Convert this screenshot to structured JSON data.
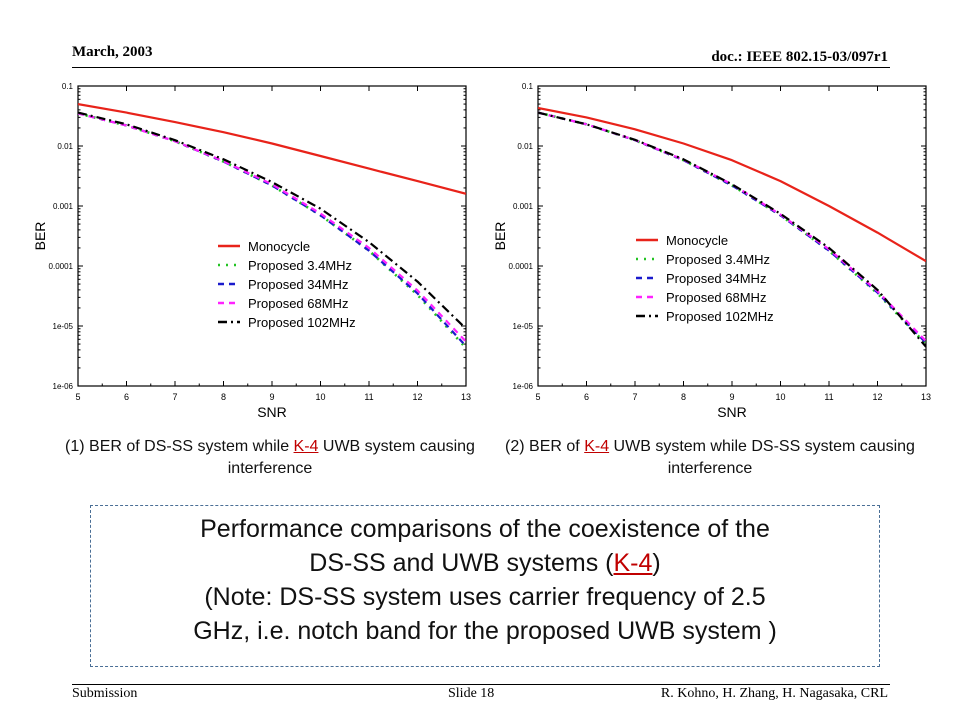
{
  "header": {
    "date": "March, 2003",
    "doc_id": "doc.: IEEE 802.15-03/097r1"
  },
  "footer": {
    "left": "Submission",
    "center": "Slide 18",
    "right": "R. Kohno, H. Zhang, H. Nagasaka, CRL"
  },
  "colors": {
    "monocycle": "#e8231a",
    "p34_dotted": "#22c322",
    "p34": "#1a1acc",
    "p68": "#ff22ff",
    "p102": "#000000",
    "caption_link": "#c00000",
    "box_border": "#4a6f96"
  },
  "captions": [
    {
      "pre": "(1) BER of DS-SS system while ",
      "link": "K-4",
      "post": " UWB system causing interference"
    },
    {
      "pre": "(2) BER of ",
      "link": "K-4",
      "post": " UWB system while DS-SS system causing interference"
    }
  ],
  "summary": {
    "line1": "Performance comparisons of the coexistence of the",
    "line2_pre": "DS-SS and UWB systems (",
    "line2_link": "K-4",
    "line2_post": ")",
    "line3": "(Note: DS-SS system uses carrier frequency of 2.5",
    "line4": "GHz, i.e. notch band for the proposed UWB system )"
  },
  "chart_data": [
    {
      "type": "line",
      "title": "",
      "xlabel": "SNR",
      "ylabel": "BER",
      "xlim": [
        5,
        13
      ],
      "ylim": [
        1e-06,
        0.1
      ],
      "log_y": true,
      "grid": false,
      "legend_position": "center-left",
      "x_ticks": [
        "5",
        "6",
        "7",
        "8",
        "9",
        "10",
        "11",
        "12",
        "13"
      ],
      "y_ticks": [
        "0.1",
        "0.01",
        "0.001",
        "0.0001",
        "1e-05",
        "1e-06"
      ],
      "x": [
        5,
        6,
        7,
        8,
        9,
        10,
        11,
        12,
        13
      ],
      "series": [
        {
          "name": "Monocycle",
          "color": "#e8231a",
          "dash": "solid",
          "values": [
            0.05,
            0.036,
            0.025,
            0.017,
            0.011,
            0.0068,
            0.0042,
            0.0026,
            0.0016
          ]
        },
        {
          "name": "Proposed 3.4MHz",
          "color": "#22c322",
          "dash": "dotted",
          "values": [
            0.035,
            0.022,
            0.012,
            0.0055,
            0.0022,
            0.0007,
            0.00018,
            3.3e-05,
            4.3e-06
          ]
        },
        {
          "name": "Proposed 34MHz",
          "color": "#1a1acc",
          "dash": "dashed",
          "values": [
            0.035,
            0.022,
            0.012,
            0.0055,
            0.0022,
            0.0007,
            0.00018,
            3.5e-05,
            4.6e-06
          ]
        },
        {
          "name": "Proposed 68MHz",
          "color": "#ff22ff",
          "dash": "dashed",
          "values": [
            0.035,
            0.022,
            0.012,
            0.0056,
            0.0023,
            0.00075,
            0.0002,
            3.9e-05,
            5.5e-06
          ]
        },
        {
          "name": "Proposed 102MHz",
          "color": "#000000",
          "dash": "dashdot",
          "values": [
            0.036,
            0.023,
            0.0125,
            0.006,
            0.0025,
            0.0009,
            0.00025,
            5.5e-05,
            9e-06
          ]
        }
      ]
    },
    {
      "type": "line",
      "title": "",
      "xlabel": "SNR",
      "ylabel": "BER",
      "xlim": [
        5,
        13
      ],
      "ylim": [
        1e-06,
        0.1
      ],
      "log_y": true,
      "grid": false,
      "legend_position": "center-right",
      "x_ticks": [
        "5",
        "6",
        "7",
        "8",
        "9",
        "10",
        "11",
        "12",
        "13"
      ],
      "y_ticks": [
        "0.1",
        "0.01",
        "0.001",
        "0.0001",
        "1e-05",
        "1e-06"
      ],
      "x": [
        5,
        6,
        7,
        8,
        9,
        10,
        11,
        12,
        13
      ],
      "series": [
        {
          "name": "Monocycle",
          "color": "#e8231a",
          "dash": "solid",
          "values": [
            0.043,
            0.03,
            0.019,
            0.011,
            0.0058,
            0.0026,
            0.001,
            0.00036,
            0.00012
          ]
        },
        {
          "name": "Proposed 3.4MHz",
          "color": "#22c322",
          "dash": "dotted",
          "values": [
            0.036,
            0.023,
            0.0125,
            0.0058,
            0.0022,
            0.0007,
            0.00018,
            3.5e-05,
            5e-06
          ]
        },
        {
          "name": "Proposed 34MHz",
          "color": "#1a1acc",
          "dash": "dashed",
          "values": [
            0.036,
            0.023,
            0.0125,
            0.0058,
            0.0022,
            0.0007,
            0.00018,
            3.6e-05,
            5.2e-06
          ]
        },
        {
          "name": "Proposed 68MHz",
          "color": "#ff22ff",
          "dash": "dashed",
          "values": [
            0.036,
            0.023,
            0.0126,
            0.0059,
            0.0023,
            0.00072,
            0.00019,
            3.8e-05,
            5.6e-06
          ]
        },
        {
          "name": "Proposed 102MHz",
          "color": "#000000",
          "dash": "dashdot",
          "values": [
            0.036,
            0.023,
            0.0127,
            0.006,
            0.0023,
            0.00074,
            0.0002,
            4e-05,
            4.5e-06
          ]
        }
      ]
    }
  ]
}
